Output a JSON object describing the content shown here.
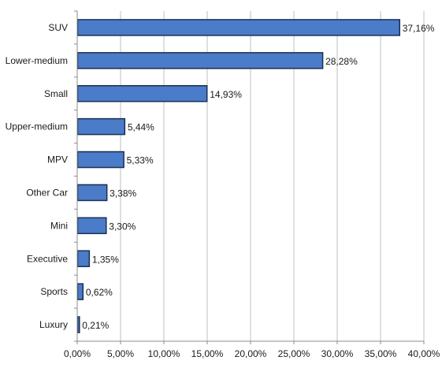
{
  "chart_data": {
    "type": "bar",
    "orientation": "horizontal",
    "categories": [
      "SUV",
      "Lower-medium",
      "Small",
      "Upper-medium",
      "MPV",
      "Other Car",
      "Mini",
      "Executive",
      "Sports",
      "Luxury"
    ],
    "values": [
      37.16,
      28.28,
      14.93,
      5.44,
      5.33,
      3.38,
      3.3,
      1.35,
      0.62,
      0.21
    ],
    "value_labels": [
      "37,16%",
      "28,28%",
      "14,93%",
      "5,44%",
      "5,33%",
      "3,38%",
      "3,30%",
      "1,35%",
      "0,62%",
      "0,21%"
    ],
    "xlim": [
      0,
      40
    ],
    "x_ticks": [
      0,
      5,
      10,
      15,
      20,
      25,
      30,
      35,
      40
    ],
    "x_tick_labels": [
      "0,00%",
      "5,00%",
      "10,00%",
      "15,00%",
      "20,00%",
      "25,00%",
      "30,00%",
      "35,00%",
      "40,00%"
    ],
    "grid": "vertical",
    "legend": "none",
    "bar_color": "#4a7cc9",
    "bar_edge_color": "#1b2f50",
    "grid_color": "#bfbfbf"
  }
}
